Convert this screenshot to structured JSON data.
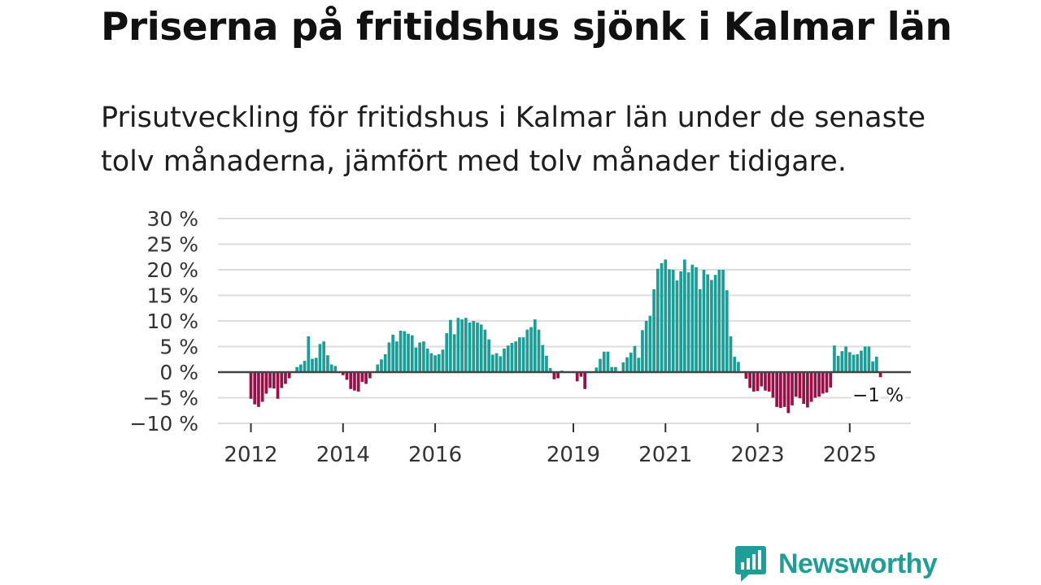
{
  "title": "Priserna på fritidshus sjönk i Kalmar län",
  "subtitle": "Prisutveckling för fritidshus i Kalmar län under de senaste tolv månaderna, jämfört med tolv månader tidigare.",
  "colors": {
    "positive": "#1a9e96",
    "negative": "#9c0f45",
    "grid": "#dddddd",
    "zero": "#444444",
    "brand": "#1f9e95"
  },
  "brand": {
    "name": "Newsworthy",
    "icon": "bar-chart-speech-bubble-icon"
  },
  "chart_data": {
    "type": "bar",
    "ylim": [
      -10,
      30
    ],
    "y_ticks": [
      30,
      25,
      20,
      15,
      10,
      5,
      0,
      -5,
      -10
    ],
    "y_tick_labels": [
      "30 %",
      "25 %",
      "20 %",
      "15 %",
      "10 %",
      "5 %",
      "0 %",
      "−5 %",
      "−10 %"
    ],
    "x_tick_labels": [
      "2012",
      "2014",
      "2016",
      "2019",
      "2021",
      "2023",
      "2025"
    ],
    "x_tick_months": [
      0,
      24,
      48,
      84,
      108,
      132,
      156
    ],
    "x_start": "2012-01",
    "last_value_label": "−1 %",
    "xlabel": "",
    "ylabel": "",
    "values": [
      -5.2,
      -6.3,
      -6.8,
      -5.8,
      -4.2,
      -3.1,
      -3.2,
      -5.2,
      -3.1,
      -2.3,
      -1.2,
      0,
      1,
      1.5,
      2.2,
      7,
      2.6,
      2.8,
      5.5,
      6,
      3.3,
      1.5,
      1.2,
      0,
      -0.6,
      -1.5,
      -3.3,
      -3.6,
      -3.8,
      -1.9,
      -2.3,
      -1.2,
      0,
      1.5,
      2.5,
      3.5,
      5.8,
      7.3,
      6,
      8.1,
      8,
      7.5,
      7.2,
      4.8,
      5.8,
      6,
      4.6,
      3.7,
      3.3,
      3.5,
      4.4,
      7.6,
      10.2,
      7.4,
      10.6,
      10.3,
      10.6,
      9.7,
      10,
      9.7,
      9.3,
      8.3,
      6.4,
      3.4,
      3.7,
      3.1,
      4.6,
      5.2,
      5.7,
      6,
      6.8,
      6.8,
      8.3,
      8.8,
      10.3,
      8.3,
      5.3,
      3.2,
      0.8,
      -1.4,
      -1.2,
      0.3,
      0,
      0,
      0,
      -1.8,
      -0.9,
      -3.3,
      0,
      0,
      0.9,
      2.6,
      4,
      4,
      1,
      1,
      0,
      1.9,
      2.9,
      3.8,
      5.1,
      2.8,
      8.2,
      10,
      11,
      16.2,
      20.2,
      21.3,
      22,
      20.1,
      20,
      17.9,
      19.7,
      22,
      19.5,
      21,
      20.5,
      16.2,
      20,
      19.1,
      18,
      19,
      20,
      20,
      16,
      7,
      3,
      2,
      0,
      -1.3,
      -3.1,
      -3.8,
      -3.7,
      -2.8,
      -3.6,
      -3.8,
      -5,
      -6.8,
      -7,
      -6.8,
      -8,
      -6.5,
      -4.8,
      -5.1,
      -6.2,
      -6.9,
      -5.8,
      -5,
      -4.8,
      -4.2,
      -4,
      -3,
      5.2,
      3.2,
      4.1,
      5,
      3.9,
      3.4,
      3.5,
      4.2,
      5,
      5,
      2.1,
      3,
      -1
    ]
  }
}
